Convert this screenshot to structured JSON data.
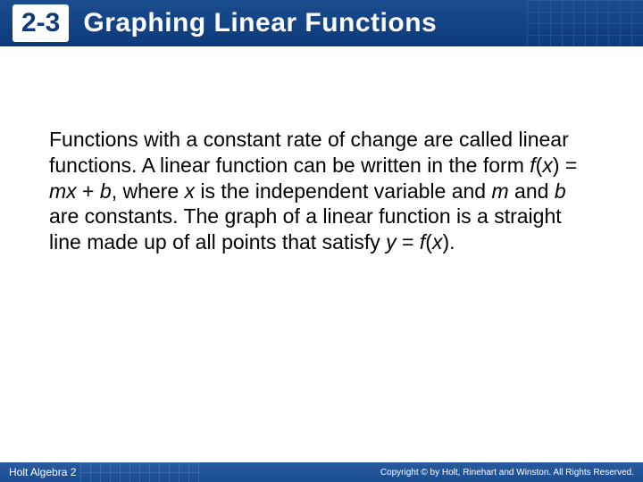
{
  "header": {
    "section_number": "2-3",
    "title": "Graphing Linear Functions",
    "background_color": "#1a4d8f",
    "title_color": "#ffffff",
    "title_fontsize": 30
  },
  "content": {
    "text_parts": {
      "p1": "Functions with a constant rate of change are called linear functions. A linear function can be written in the form ",
      "f1": "f",
      "paren1": "(",
      "x1": "x",
      "p2": ") = ",
      "m1": "mx",
      "p3": " + ",
      "b1": "b",
      "p4": ", where ",
      "x2": "x",
      "p5": " is the independent variable and ",
      "m2": "m",
      "p6": " and ",
      "b2": "b",
      "p7": " are constants. The graph of a linear function is a straight line made up of all points that satisfy ",
      "y1": "y",
      "p8": " = ",
      "f2": "f",
      "paren2": "(",
      "x3": "x",
      "p9": ")."
    },
    "fontsize": 23,
    "color": "#000000"
  },
  "footer": {
    "left_text": "Holt Algebra 2",
    "right_text": "Copyright © by Holt, Rinehart and Winston. All Rights Reserved.",
    "background_color": "#1a4d8f"
  }
}
